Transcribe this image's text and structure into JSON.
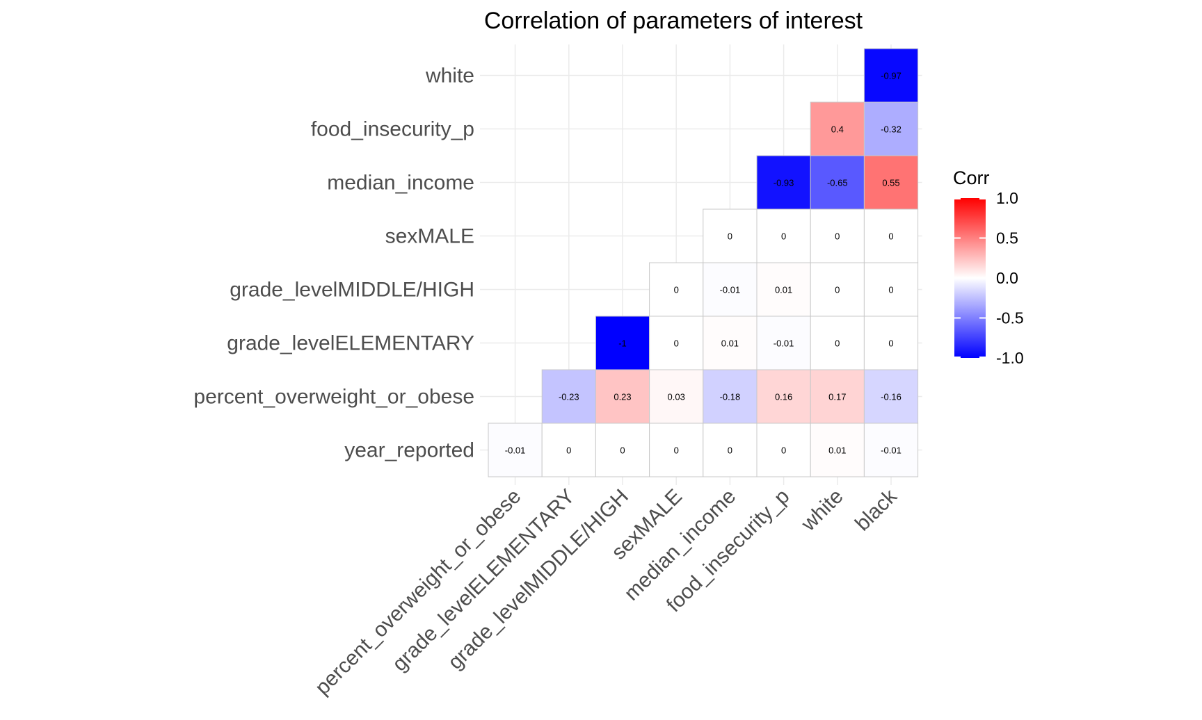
{
  "chart_data": {
    "type": "heatmap",
    "title": "Correlation of parameters of interest",
    "x_labels": [
      "percent_overweight_or_obese",
      "grade_levelELEMENTARY",
      "grade_levelMIDDLE/HIGH",
      "sexMALE",
      "median_income",
      "food_insecurity_p",
      "white",
      "black"
    ],
    "y_labels": [
      "year_reported",
      "percent_overweight_or_obese",
      "grade_levelELEMENTARY",
      "grade_levelMIDDLE/HIGH",
      "sexMALE",
      "median_income",
      "food_insecurity_p",
      "white"
    ],
    "values": [
      [
        -0.01,
        0,
        0,
        0,
        0,
        0,
        0.01,
        -0.01
      ],
      [
        null,
        -0.23,
        0.23,
        0.03,
        -0.18,
        0.16,
        0.17,
        -0.16
      ],
      [
        null,
        null,
        -1,
        0,
        0.01,
        -0.01,
        0,
        0
      ],
      [
        null,
        null,
        null,
        0,
        -0.01,
        0.01,
        0,
        0
      ],
      [
        null,
        null,
        null,
        null,
        0,
        0,
        0,
        0
      ],
      [
        null,
        null,
        null,
        null,
        null,
        -0.93,
        -0.65,
        0.55
      ],
      [
        null,
        null,
        null,
        null,
        null,
        null,
        0.4,
        -0.32
      ],
      [
        null,
        null,
        null,
        null,
        null,
        null,
        null,
        -0.97
      ]
    ],
    "legend": {
      "title": "Corr",
      "ticks": [
        "1.0",
        "0.5",
        "0.0",
        "-0.5",
        "-1.0"
      ],
      "range": [
        -1,
        1
      ],
      "low_color": "#0000ff",
      "mid_color": "#ffffff",
      "high_color": "#ff0000"
    }
  }
}
